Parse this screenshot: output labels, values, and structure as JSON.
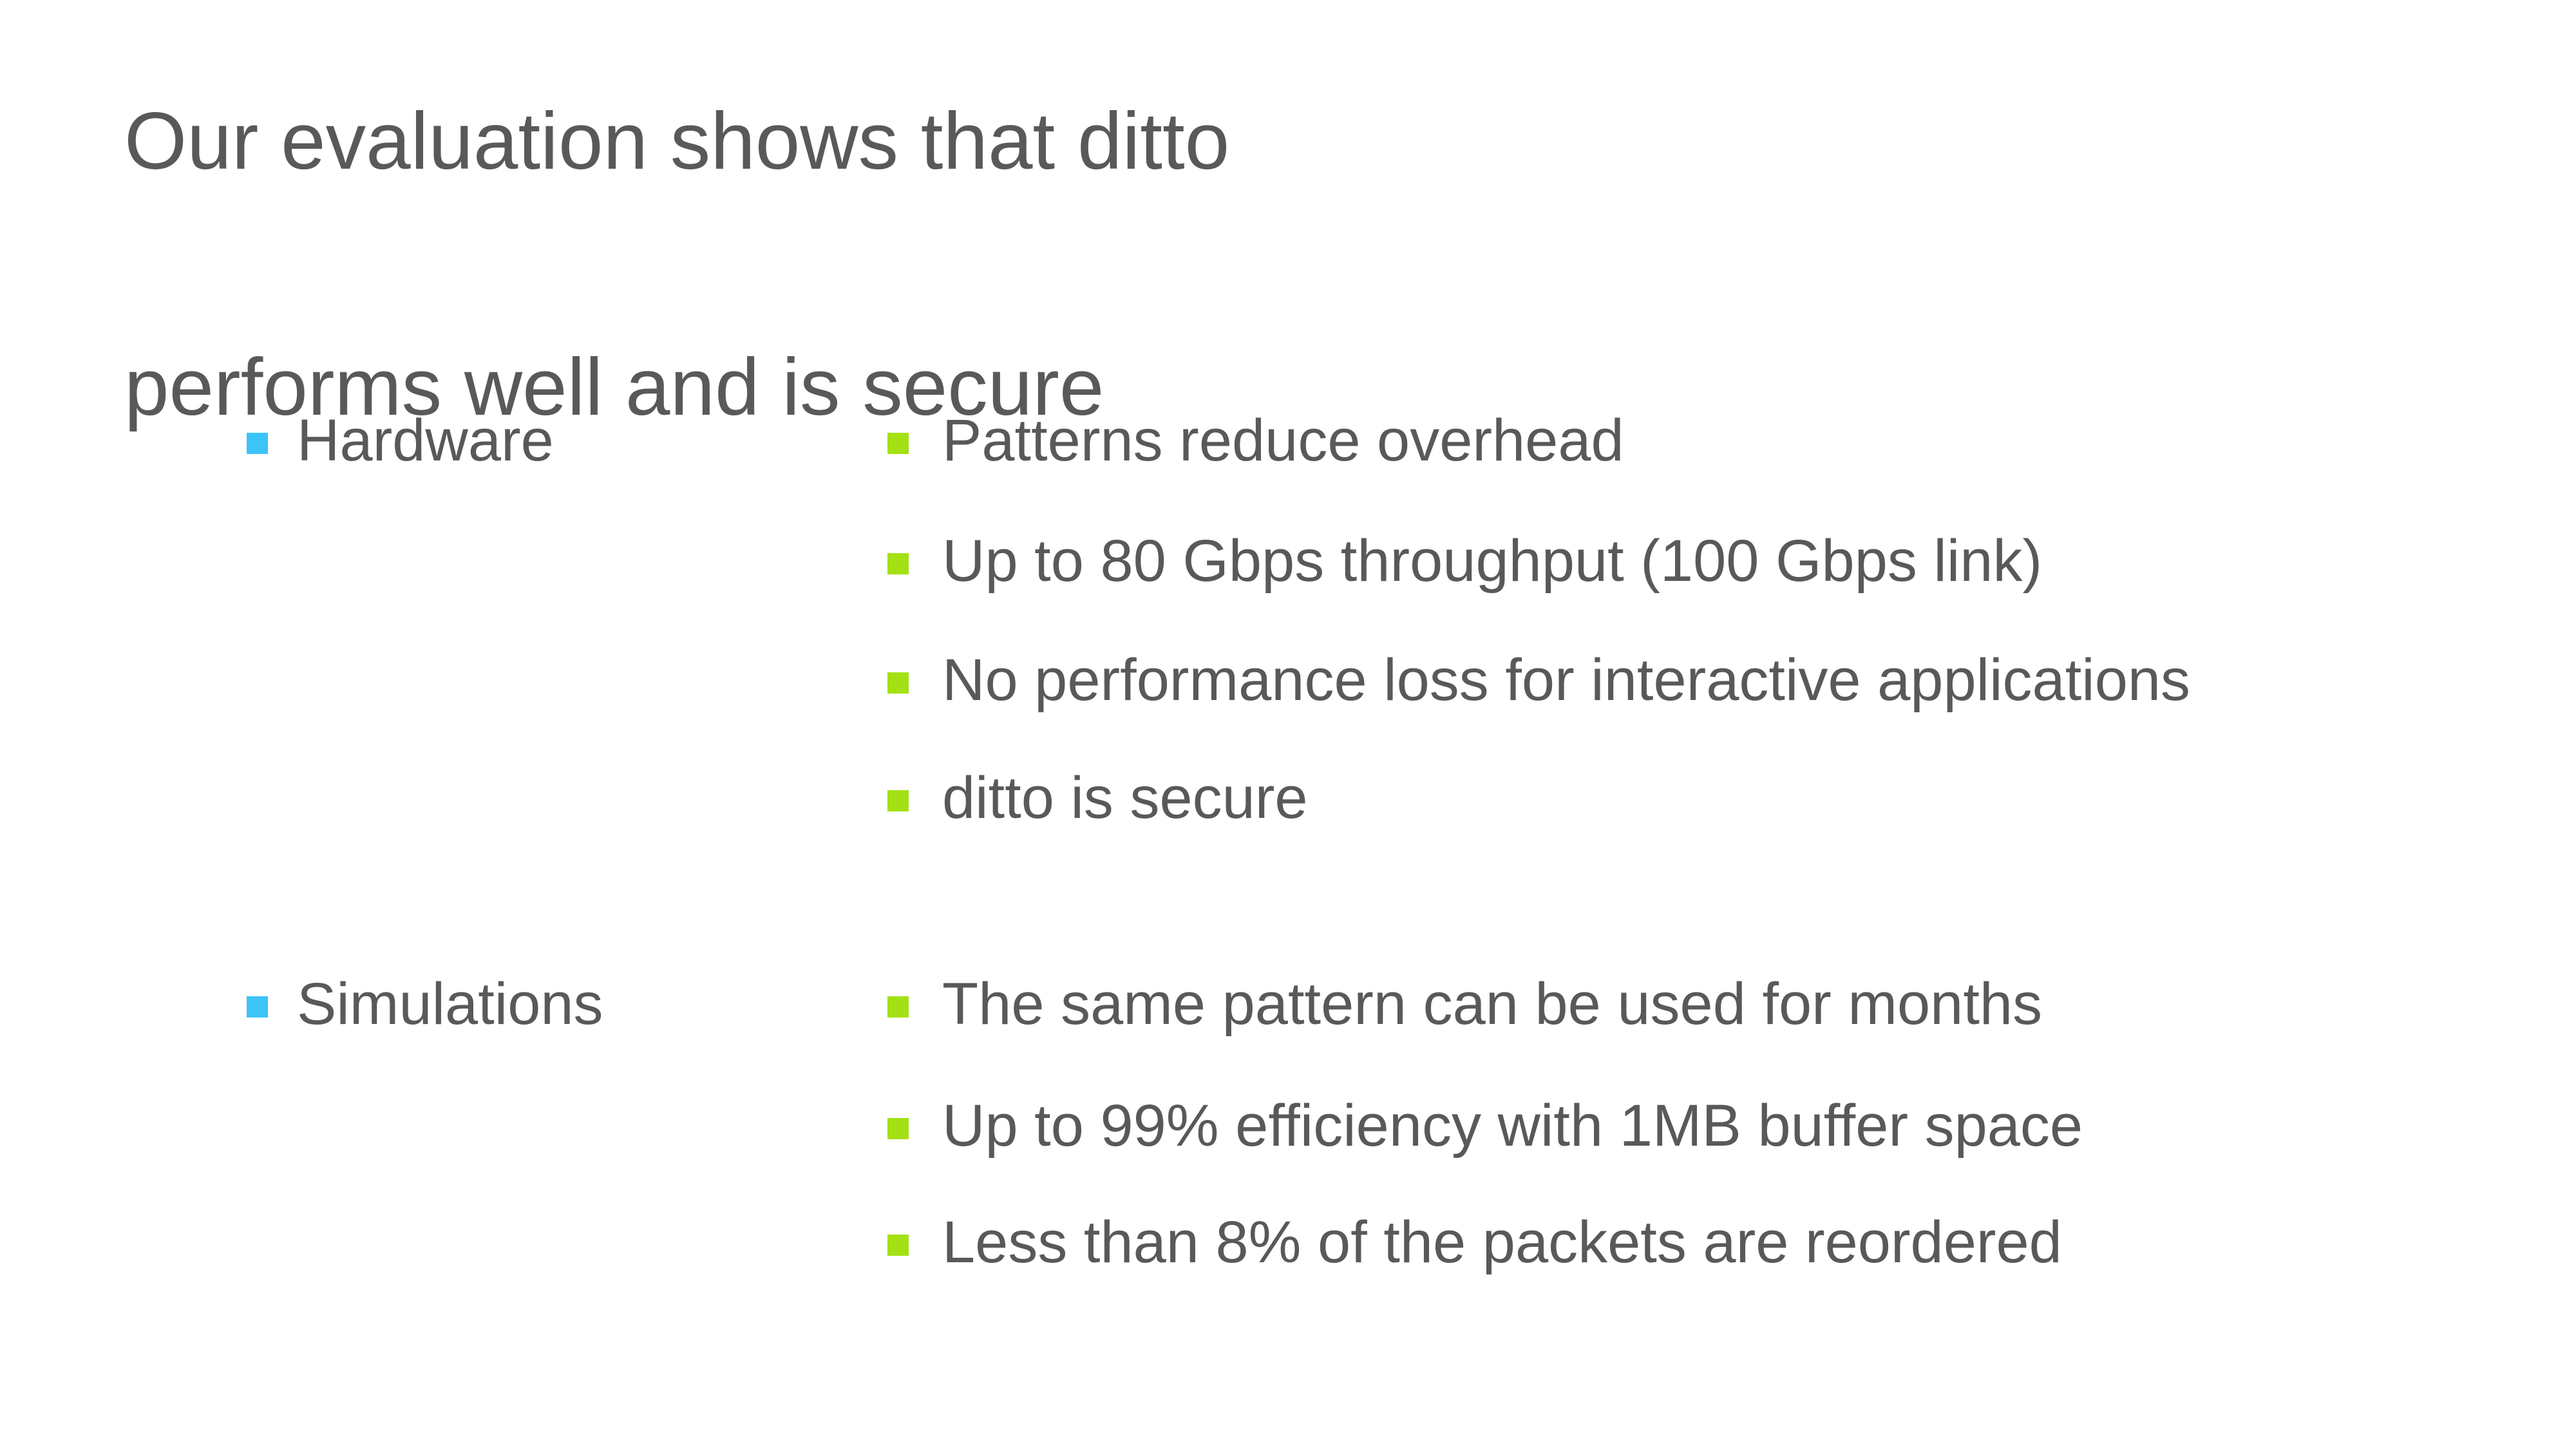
{
  "slide": {
    "title": {
      "line1": "Our evaluation shows that ditto",
      "line2": "performs well and is secure"
    },
    "groups": [
      {
        "label": "Hardware",
        "items": [
          "Patterns reduce overhead",
          "Up to 80 Gbps throughput (100 Gbps link)",
          "No performance loss for interactive applications",
          "ditto is secure"
        ]
      },
      {
        "label": "Simulations",
        "items": [
          "The same pattern can be used for months",
          "Up to 99% efficiency with 1MB buffer space",
          "Less than 8% of the packets are reordered"
        ]
      }
    ],
    "colors": {
      "background": "#ffffff",
      "text": "#595959",
      "category_bullet": "#3dc4f7",
      "item_bullet": "#a3e114"
    }
  }
}
